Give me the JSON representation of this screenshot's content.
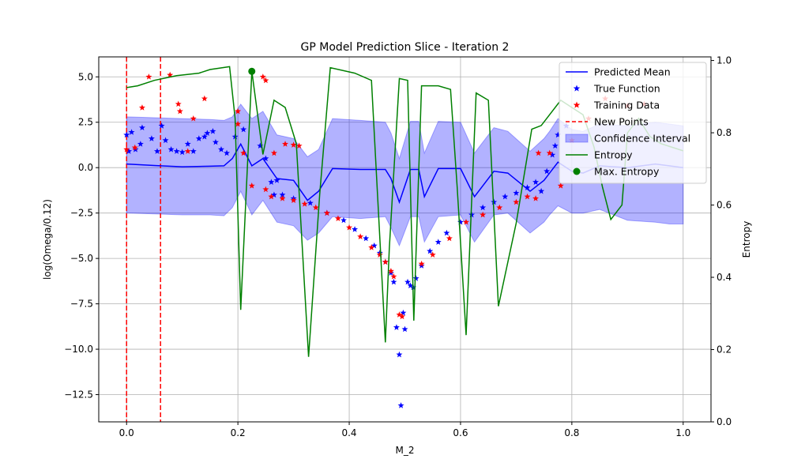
{
  "chart_data": {
    "type": "line",
    "title": "GP Model Prediction Slice - Iteration 2",
    "xlabel": "M_2",
    "ylabel": "log(Omega/0.12)",
    "y2label": "Entropy",
    "xlim": [
      -0.05,
      1.05
    ],
    "ylim": [
      -14.0,
      6.1
    ],
    "y2lim": [
      0.0,
      1.01
    ],
    "grid": true,
    "legend_position": "upper right",
    "xticks": [
      0.0,
      0.2,
      0.4,
      0.6,
      0.8,
      1.0
    ],
    "xtick_labels": [
      "0.0",
      "0.2",
      "0.4",
      "0.6",
      "0.8",
      "1.0"
    ],
    "yticks": [
      5.0,
      2.5,
      0.0,
      -2.5,
      -5.0,
      -7.5,
      -10.0,
      -12.5
    ],
    "ytick_labels": [
      "5.0",
      "2.5",
      "0.0",
      "−2.5",
      "−5.0",
      "−7.5",
      "−10.0",
      "−12.5"
    ],
    "y2ticks": [
      0.0,
      0.2,
      0.4,
      0.6,
      0.8,
      1.0
    ],
    "y2tick_labels": [
      "0.0",
      "0.2",
      "0.4",
      "0.6",
      "0.8",
      "1.0"
    ],
    "legend": [
      {
        "label": "Predicted Mean",
        "kind": "line",
        "color": "#0000ff"
      },
      {
        "label": "True Function",
        "kind": "star",
        "color": "#0000ff"
      },
      {
        "label": "Training Data",
        "kind": "star",
        "color": "#ff0000"
      },
      {
        "label": "New Points",
        "kind": "dashed",
        "color": "#ff0000"
      },
      {
        "label": "Confidence Interval",
        "kind": "patch",
        "color": "#0000ff"
      },
      {
        "label": "Entropy",
        "kind": "line",
        "color": "#008000"
      },
      {
        "label": "Max. Entropy",
        "kind": "dot",
        "color": "#008000"
      }
    ],
    "colors": {
      "mean": "#0000ff",
      "band": "#0000ff",
      "true": "#0000ff",
      "train": "#ff0000",
      "new": "#ff0000",
      "entropy": "#008000",
      "grid": "#b0b0b0"
    },
    "new_points_x": [
      0.0,
      0.061
    ],
    "max_entropy_point": {
      "x": 0.225,
      "entropy": 0.97
    },
    "mean": {
      "x": [
        0.0,
        0.05,
        0.1,
        0.15,
        0.175,
        0.19,
        0.205,
        0.225,
        0.245,
        0.27,
        0.3,
        0.325,
        0.345,
        0.37,
        0.42,
        0.465,
        0.475,
        0.49,
        0.51,
        0.525,
        0.535,
        0.56,
        0.6,
        0.625,
        0.66,
        0.685,
        0.725,
        0.75,
        0.76,
        0.775,
        0.8,
        0.82,
        0.85,
        0.9,
        0.95,
        0.975,
        1.0
      ],
      "y": [
        0.2,
        0.12,
        0.05,
        0.08,
        0.1,
        0.5,
        1.3,
        0.1,
        0.5,
        -0.6,
        -0.7,
        -1.8,
        -1.3,
        -0.05,
        -0.1,
        -0.1,
        -0.6,
        -1.9,
        -0.1,
        -0.1,
        -1.6,
        -0.05,
        -0.05,
        -1.6,
        -0.2,
        -0.3,
        -1.3,
        -0.7,
        -0.3,
        0.3,
        -0.2,
        -0.3,
        0.1,
        0.0,
        0.2,
        0.1,
        0.0
      ]
    },
    "confidence_upper": [
      2.8,
      2.75,
      2.7,
      2.65,
      2.6,
      2.8,
      3.5,
      2.7,
      3.1,
      1.8,
      1.6,
      0.6,
      1.0,
      2.7,
      2.6,
      2.5,
      1.9,
      0.5,
      2.55,
      2.55,
      0.8,
      2.55,
      2.5,
      0.8,
      2.2,
      2.0,
      0.9,
      1.6,
      2.0,
      2.7,
      2.1,
      2.0,
      2.4,
      2.3,
      2.5,
      2.4,
      2.3
    ],
    "confidence_lower": [
      -2.5,
      -2.55,
      -2.6,
      -2.6,
      -2.65,
      -2.2,
      -1.3,
      -2.6,
      -1.8,
      -3.0,
      -3.2,
      -4.0,
      -3.6,
      -2.7,
      -2.8,
      -2.7,
      -3.3,
      -4.3,
      -2.7,
      -2.7,
      -4.1,
      -2.7,
      -2.6,
      -4.1,
      -2.6,
      -2.5,
      -3.6,
      -3.0,
      -2.6,
      -2.1,
      -2.5,
      -2.5,
      -2.3,
      -2.9,
      -3.0,
      -3.1,
      -3.1
    ],
    "entropy": {
      "x": [
        0.0,
        0.02,
        0.05,
        0.09,
        0.13,
        0.15,
        0.185,
        0.195,
        0.205,
        0.225,
        0.245,
        0.265,
        0.285,
        0.305,
        0.327,
        0.347,
        0.366,
        0.41,
        0.44,
        0.465,
        0.472,
        0.49,
        0.505,
        0.516,
        0.53,
        0.54,
        0.56,
        0.582,
        0.594,
        0.61,
        0.628,
        0.65,
        0.668,
        0.7,
        0.728,
        0.745,
        0.78,
        0.82,
        0.84,
        0.855,
        0.87,
        0.89,
        0.9,
        0.92,
        0.94,
        0.96,
        0.98,
        1.0
      ],
      "y": [
        0.925,
        0.93,
        0.945,
        0.958,
        0.965,
        0.975,
        0.983,
        0.84,
        0.31,
        0.97,
        0.74,
        0.89,
        0.87,
        0.77,
        0.18,
        0.63,
        0.98,
        0.965,
        0.945,
        0.22,
        0.48,
        0.95,
        0.945,
        0.28,
        0.93,
        0.93,
        0.93,
        0.92,
        0.65,
        0.24,
        0.91,
        0.89,
        0.32,
        0.55,
        0.81,
        0.82,
        0.89,
        0.85,
        0.76,
        0.65,
        0.56,
        0.6,
        0.8,
        0.84,
        0.79,
        0.77,
        0.76,
        0.75
      ]
    },
    "true_function": {
      "x": [
        0.0,
        0.004,
        0.009,
        0.016,
        0.025,
        0.028,
        0.045,
        0.055,
        0.063,
        0.07,
        0.08,
        0.09,
        0.1,
        0.11,
        0.12,
        0.13,
        0.14,
        0.145,
        0.155,
        0.16,
        0.17,
        0.18,
        0.195,
        0.21,
        0.24,
        0.25,
        0.26,
        0.265,
        0.27,
        0.28,
        0.3,
        0.33,
        0.36,
        0.39,
        0.41,
        0.43,
        0.445,
        0.455,
        0.465,
        0.475,
        0.48,
        0.485,
        0.49,
        0.493,
        0.497,
        0.5,
        0.505,
        0.51,
        0.515,
        0.52,
        0.53,
        0.545,
        0.56,
        0.575,
        0.6,
        0.62,
        0.64,
        0.66,
        0.68,
        0.7,
        0.72,
        0.735,
        0.745,
        0.755,
        0.765,
        0.77,
        0.775,
        0.79
      ],
      "y": [
        1.8,
        0.9,
        1.95,
        1.0,
        1.3,
        2.2,
        1.6,
        0.9,
        2.3,
        1.5,
        1.0,
        0.9,
        0.85,
        1.3,
        0.9,
        1.6,
        1.7,
        1.9,
        2.0,
        1.4,
        1.0,
        0.8,
        1.7,
        2.1,
        1.2,
        0.5,
        -0.8,
        -1.5,
        -0.7,
        -1.5,
        -1.7,
        -1.95,
        -2.5,
        -2.9,
        -3.4,
        -3.9,
        -4.3,
        -4.7,
        -5.2,
        -5.8,
        -6.3,
        -8.8,
        -10.3,
        -13.1,
        -8.0,
        -8.9,
        -6.3,
        -6.5,
        -6.6,
        -6.1,
        -5.4,
        -4.6,
        -4.1,
        -3.6,
        -3.0,
        -2.6,
        -2.2,
        -1.9,
        -1.6,
        -1.4,
        -1.1,
        -0.8,
        -1.3,
        -0.2,
        0.7,
        1.2,
        1.8,
        2.3
      ]
    },
    "training_data": {
      "x": [
        0.0,
        0.015,
        0.028,
        0.04,
        0.078,
        0.093,
        0.096,
        0.11,
        0.14,
        0.12,
        0.2,
        0.2,
        0.21,
        0.225,
        0.245,
        0.25,
        0.265,
        0.285,
        0.3,
        0.31,
        0.25,
        0.26,
        0.28,
        0.3,
        0.32,
        0.34,
        0.36,
        0.38,
        0.4,
        0.42,
        0.44,
        0.455,
        0.465,
        0.475,
        0.48,
        0.49,
        0.495,
        0.53,
        0.55,
        0.58,
        0.61,
        0.64,
        0.67,
        0.7,
        0.72,
        0.735,
        0.74,
        0.76,
        0.78,
        0.8,
        0.83,
        0.86,
        0.9,
        0.93
      ],
      "y": [
        1.0,
        1.1,
        3.3,
        5.0,
        5.1,
        3.5,
        3.1,
        0.9,
        3.8,
        2.7,
        3.1,
        2.4,
        0.8,
        -1.0,
        5.0,
        4.8,
        0.8,
        1.3,
        1.25,
        1.2,
        -1.2,
        -1.6,
        -1.7,
        -1.8,
        -2.0,
        -2.2,
        -2.5,
        -2.8,
        -3.3,
        -3.8,
        -4.4,
        -4.8,
        -5.2,
        -5.7,
        -6.0,
        -8.1,
        -8.2,
        -5.3,
        -4.8,
        -3.9,
        -3.0,
        -2.6,
        -2.2,
        -1.9,
        -1.6,
        -1.7,
        0.8,
        0.8,
        -1.0,
        1.5,
        2.7,
        3.8,
        3.4,
        3.5
      ]
    }
  }
}
